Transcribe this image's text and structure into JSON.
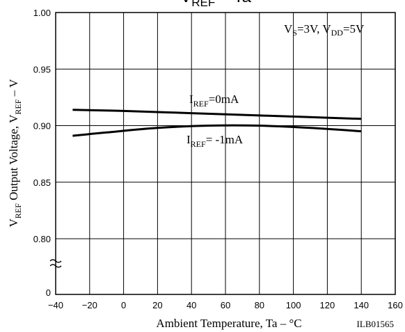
{
  "chart_data": {
    "type": "line",
    "title": "VREF – Ta",
    "title_parts": {
      "main": "V",
      "sub": "REF",
      "rest": " – Ta"
    },
    "xlabel": "Ambient Temperature, Ta – °C",
    "ylabel": "VREF Output Voltage, VREF – V",
    "ylabel_parts": {
      "a": "V",
      "a_sub": "REF",
      "b": " Output Voltage, V",
      "b_sub": "REF",
      "c": " – V"
    },
    "xlim": [
      -40,
      160
    ],
    "ylim": [
      0.8,
      1.0
    ],
    "y_break": true,
    "x_ticks": [
      "-40",
      "-20",
      "0",
      "20",
      "40",
      "60",
      "80",
      "100",
      "120",
      "140",
      "160"
    ],
    "y_ticks": [
      "1.00",
      "0.95",
      "0.90",
      "0.85",
      "0.80"
    ],
    "y_zero_label": "0",
    "grid": true,
    "condition_label": {
      "p1": "V",
      "p1_sub": "S",
      "p2": "=3V, V",
      "p2_sub": "DD",
      "p3": "=5V"
    },
    "code_label": "ILB01565",
    "series": [
      {
        "name": "IREF=0mA",
        "label_parts": {
          "main": "I",
          "sub": "REF",
          "rest": "=0mA"
        },
        "x": [
          -30,
          0,
          40,
          80,
          140
        ],
        "y": [
          0.914,
          0.913,
          0.911,
          0.909,
          0.906
        ]
      },
      {
        "name": "IREF= -1mA",
        "label_parts": {
          "main": "I",
          "sub": "REF",
          "rest": "= -1mA"
        },
        "x": [
          -30,
          -10,
          20,
          50,
          80,
          110,
          140
        ],
        "y": [
          0.891,
          0.894,
          0.898,
          0.9,
          0.9,
          0.898,
          0.895
        ]
      }
    ]
  }
}
